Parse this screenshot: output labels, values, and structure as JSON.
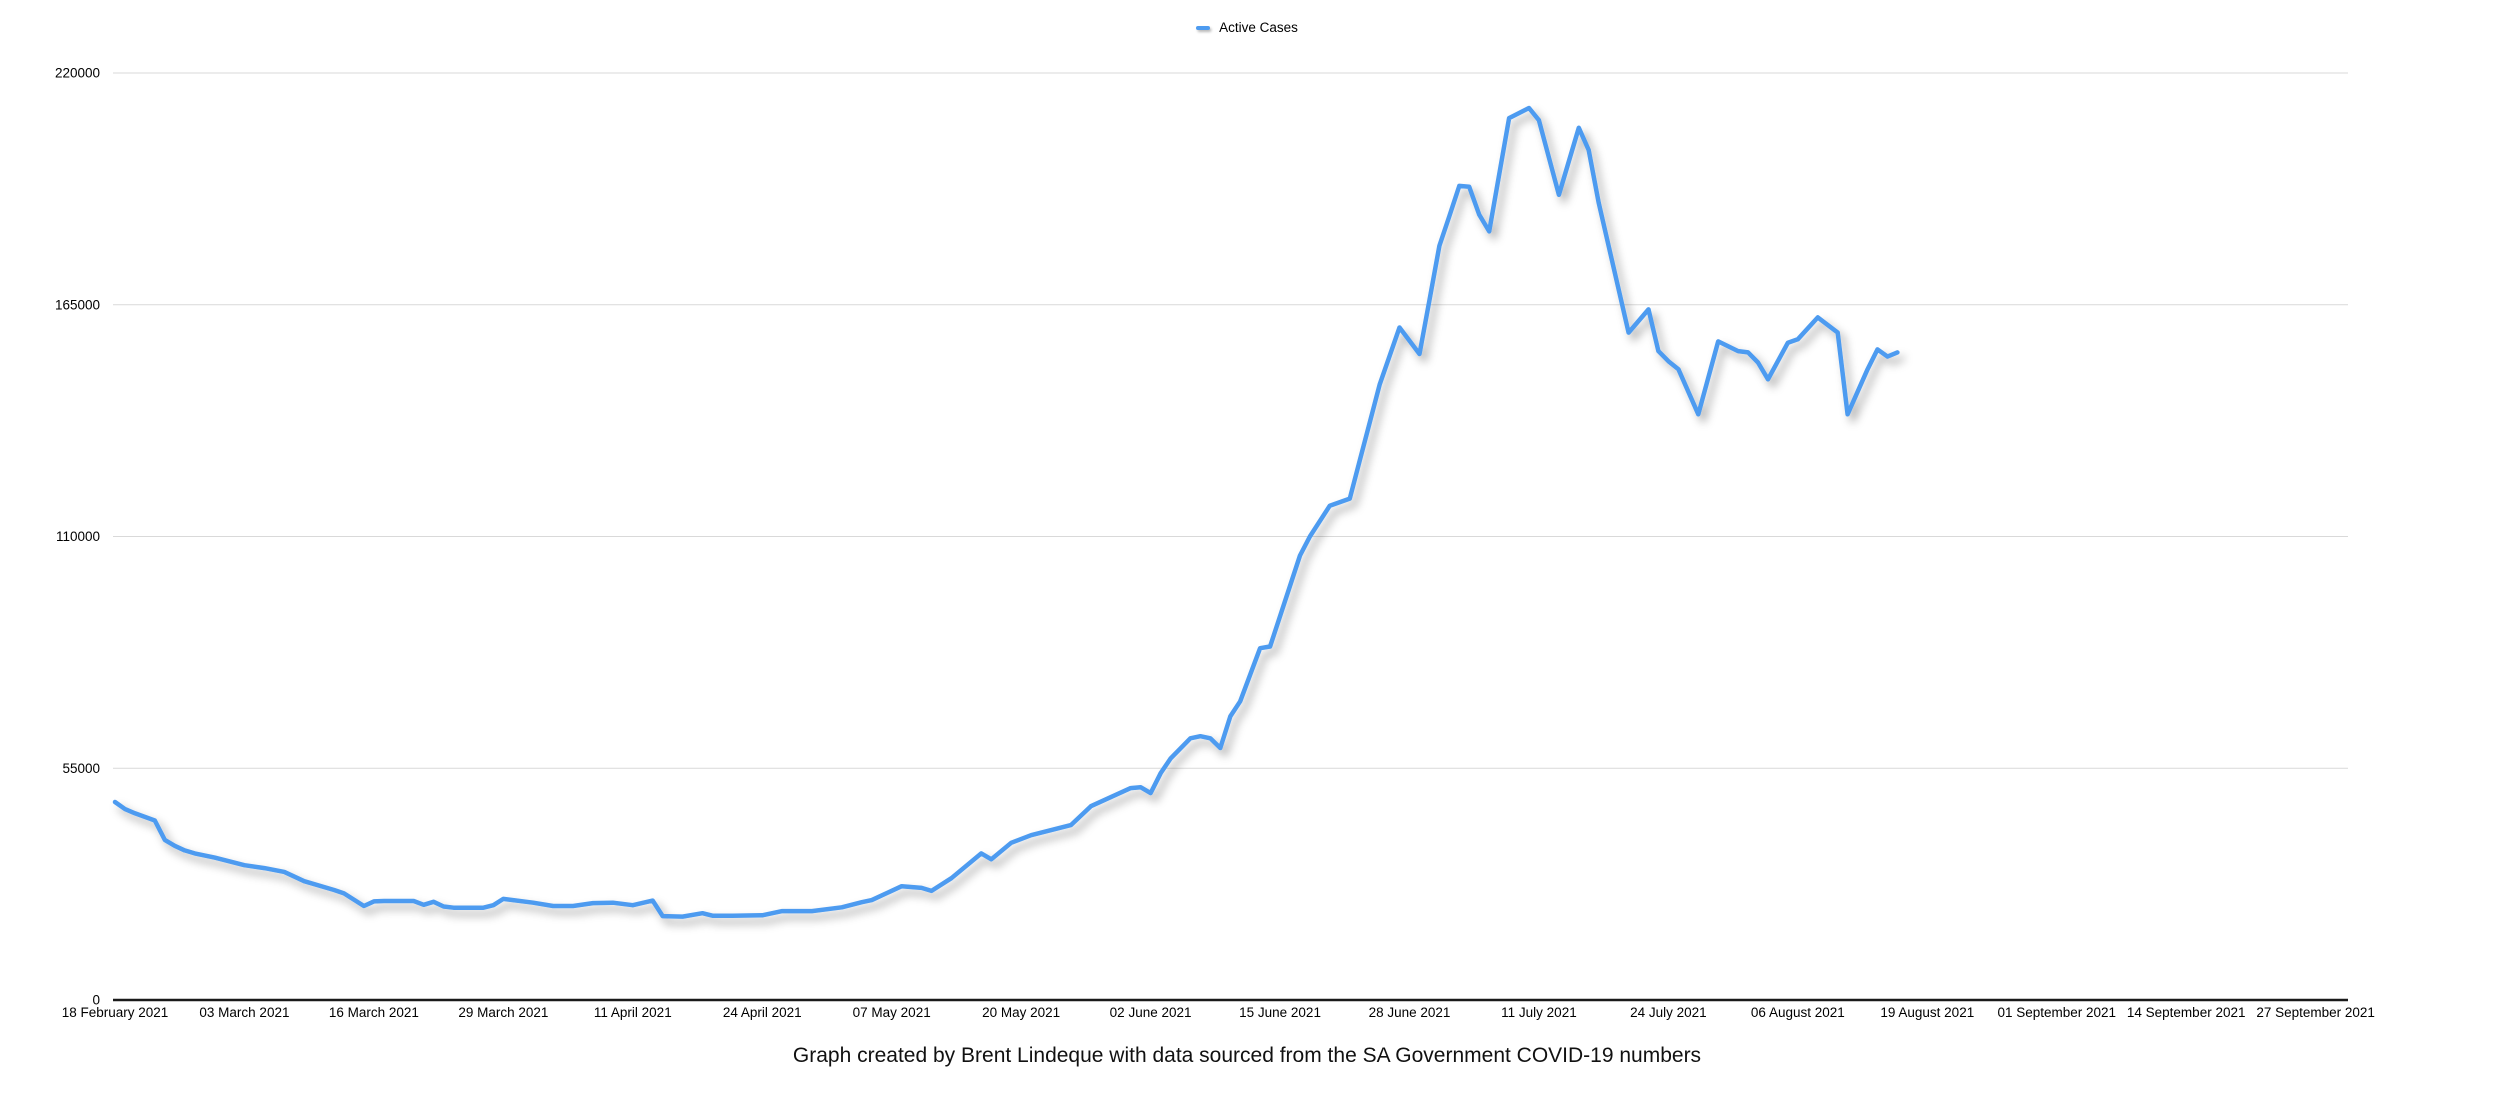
{
  "style": {
    "series_color": "#4D9BF0",
    "gridline_color": "#D9D9D9",
    "axis_color": "#1A1A1A",
    "text_color": "#000000",
    "background_color": "#FFFFFF"
  },
  "chart_data": {
    "type": "line",
    "title": "",
    "series_name": "Active Cases",
    "caption": "Graph created by Brent Lindeque with data sourced from the SA Government COVID-19 numbers",
    "legend_position": "top-center",
    "grid": "horizontal",
    "y_axis": {
      "min": 0,
      "max": 220000,
      "ticks": [
        0,
        55000,
        110000,
        165000,
        220000
      ],
      "tick_labels": [
        "0",
        "55000",
        "110000",
        "165000",
        "220000"
      ]
    },
    "x_axis": {
      "tick_labels": [
        "18 February 2021",
        "03 March 2021",
        "16 March 2021",
        "29 March 2021",
        "11 April 2021",
        "24 April 2021",
        "07 May 2021",
        "20 May 2021",
        "02 June 2021",
        "15 June 2021",
        "28 June 2021",
        "11 July 2021",
        "24 July 2021",
        "06 August 2021",
        "19 August 2021",
        "01 September 2021",
        "14 September 2021",
        "27 September 2021"
      ],
      "tick_interval_days": 13,
      "day0_date": "2021-02-18",
      "axis_end_date": "2021-09-27",
      "data_end_date": "2021-08-16"
    },
    "points_format": "[days_since_2021-02-18, active_cases]",
    "points": [
      [
        0,
        47000
      ],
      [
        1,
        45300
      ],
      [
        2,
        44300
      ],
      [
        4,
        42600
      ],
      [
        5,
        38000
      ],
      [
        6,
        36600
      ],
      [
        7,
        35500
      ],
      [
        8,
        34800
      ],
      [
        10,
        33800
      ],
      [
        13,
        32000
      ],
      [
        15,
        31300
      ],
      [
        17,
        30400
      ],
      [
        19,
        28200
      ],
      [
        22,
        26100
      ],
      [
        23,
        25300
      ],
      [
        25,
        22300
      ],
      [
        26,
        23400
      ],
      [
        27,
        23500
      ],
      [
        30,
        23500
      ],
      [
        31,
        22600
      ],
      [
        32,
        23300
      ],
      [
        33,
        22200
      ],
      [
        34,
        21900
      ],
      [
        37,
        21900
      ],
      [
        38,
        22500
      ],
      [
        39,
        24000
      ],
      [
        42,
        23100
      ],
      [
        44,
        22300
      ],
      [
        46,
        22300
      ],
      [
        48,
        23000
      ],
      [
        50,
        23100
      ],
      [
        52,
        22500
      ],
      [
        54,
        23600
      ],
      [
        55,
        19900
      ],
      [
        57,
        19800
      ],
      [
        59,
        20600
      ],
      [
        60,
        20000
      ],
      [
        62,
        20000
      ],
      [
        65,
        20100
      ],
      [
        67,
        21100
      ],
      [
        70,
        21100
      ],
      [
        73,
        22000
      ],
      [
        75,
        23200
      ],
      [
        76,
        23700
      ],
      [
        79,
        27000
      ],
      [
        81,
        26600
      ],
      [
        82,
        25900
      ],
      [
        84,
        28900
      ],
      [
        87,
        34800
      ],
      [
        88,
        33400
      ],
      [
        90,
        37300
      ],
      [
        92,
        39100
      ],
      [
        96,
        41500
      ],
      [
        98,
        46000
      ],
      [
        102,
        50300
      ],
      [
        103,
        50500
      ],
      [
        104,
        49100
      ],
      [
        105,
        53800
      ],
      [
        106,
        57300
      ],
      [
        108,
        62100
      ],
      [
        109,
        62600
      ],
      [
        110,
        62100
      ],
      [
        111,
        59800
      ],
      [
        112,
        67300
      ],
      [
        113,
        70900
      ],
      [
        115,
        83500
      ],
      [
        116,
        83900
      ],
      [
        119,
        105500
      ],
      [
        120,
        110000
      ],
      [
        122,
        117300
      ],
      [
        124,
        119000
      ],
      [
        125,
        128000
      ],
      [
        126,
        137000
      ],
      [
        127,
        146000
      ],
      [
        129,
        159600
      ],
      [
        131,
        153300
      ],
      [
        132,
        166000
      ],
      [
        133,
        179000
      ],
      [
        134,
        186000
      ],
      [
        135,
        193200
      ],
      [
        136,
        193000
      ],
      [
        137,
        186400
      ],
      [
        138,
        182400
      ],
      [
        140,
        209300
      ],
      [
        142,
        211700
      ],
      [
        143,
        208800
      ],
      [
        145,
        191100
      ],
      [
        147,
        207000
      ],
      [
        148,
        201700
      ],
      [
        149,
        189200
      ],
      [
        152,
        158400
      ],
      [
        154,
        163900
      ],
      [
        155,
        154000
      ],
      [
        156,
        151600
      ],
      [
        157,
        149700
      ],
      [
        159,
        139000
      ],
      [
        161,
        156300
      ],
      [
        163,
        154000
      ],
      [
        164,
        153700
      ],
      [
        165,
        151300
      ],
      [
        166,
        147300
      ],
      [
        168,
        156000
      ],
      [
        169,
        156800
      ],
      [
        171,
        162000
      ],
      [
        173,
        158400
      ],
      [
        174,
        139000
      ],
      [
        176,
        149700
      ],
      [
        177,
        154400
      ],
      [
        178,
        152700
      ],
      [
        179,
        153700
      ]
    ]
  }
}
